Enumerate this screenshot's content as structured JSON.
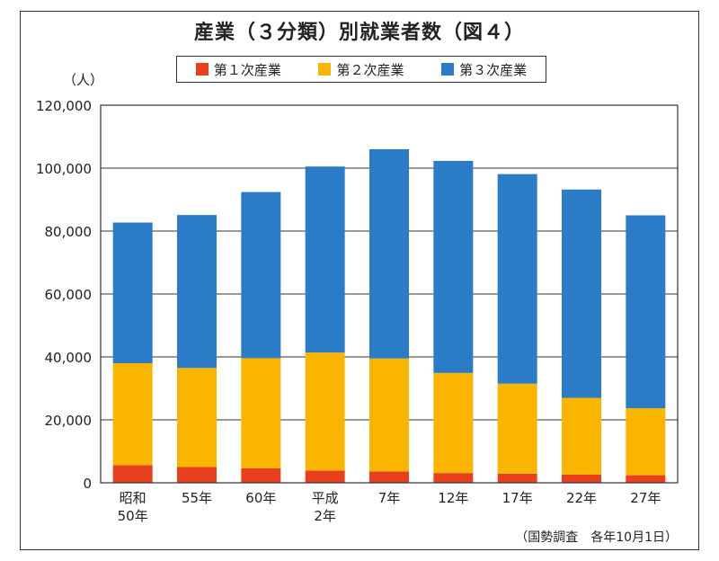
{
  "chart_data": {
    "type": "bar",
    "stacked": true,
    "title": "産業（３分類）別就業者数（図４）",
    "ylabel": "（人）",
    "note": "（国勢調査　各年10月1日）",
    "ylim": [
      0,
      120000
    ],
    "yticks": [
      "0",
      "20,000",
      "40,000",
      "60,000",
      "80,000",
      "100,000",
      "120,000"
    ],
    "ytick_values": [
      0,
      20000,
      40000,
      60000,
      80000,
      100000,
      120000
    ],
    "grid": true,
    "legend_position": "top-center",
    "categories": [
      [
        "昭和",
        "50年"
      ],
      [
        "55年"
      ],
      [
        "60年"
      ],
      [
        "平成",
        "2年"
      ],
      [
        "7年"
      ],
      [
        "12年"
      ],
      [
        "17年"
      ],
      [
        "22年"
      ],
      [
        "27年"
      ]
    ],
    "series": [
      {
        "name": "第１次産業",
        "color": "#e8401c",
        "values": [
          5600,
          5000,
          4600,
          3900,
          3600,
          3100,
          2900,
          2600,
          2400
        ]
      },
      {
        "name": "第２次産業",
        "color": "#f9b500",
        "values": [
          32400,
          31500,
          35000,
          37500,
          35900,
          31800,
          28600,
          24400,
          21300
        ]
      },
      {
        "name": "第３次産業",
        "color": "#2a7cc7",
        "values": [
          44700,
          48600,
          52800,
          59100,
          66500,
          67400,
          66600,
          66200,
          61300
        ]
      }
    ]
  }
}
